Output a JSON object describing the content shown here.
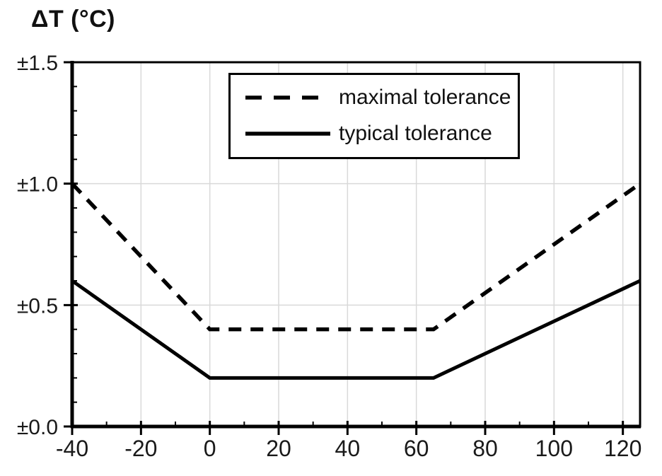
{
  "title": "ΔT (°C)",
  "colors": {
    "axis": "#000000",
    "grid": "#d9d9d9",
    "text": "#1a1a1a",
    "background": "#ffffff"
  },
  "legend": {
    "entries": [
      "maximal tolerance",
      "typical tolerance"
    ]
  },
  "chart_data": {
    "type": "line",
    "title": "ΔT (°C)",
    "xlabel": "",
    "ylabel": "ΔT (°C)",
    "xlim": [
      -40,
      125
    ],
    "ylim": [
      0,
      1.5
    ],
    "x_major_ticks": [
      -40,
      -20,
      0,
      20,
      40,
      60,
      80,
      100,
      120
    ],
    "x_tick_labels": [
      "-40",
      "-20",
      "0",
      "20",
      "40",
      "60",
      "80",
      "100",
      "120"
    ],
    "x_minor_tick_step": 10,
    "y_major_ticks": [
      0,
      0.5,
      1.0,
      1.5
    ],
    "y_tick_labels": [
      "±0.0",
      "±0.5",
      "±1.0",
      "±1.5"
    ],
    "y_minor_tick_step": 0.1,
    "grid": true,
    "legend_position": "top-center-inside",
    "series": [
      {
        "name": "maximal tolerance",
        "line_style": "dashed",
        "color": "#000000",
        "points": [
          [
            -40,
            1.0
          ],
          [
            0,
            0.4
          ],
          [
            65,
            0.4
          ],
          [
            125,
            1.0
          ]
        ]
      },
      {
        "name": "typical tolerance",
        "line_style": "solid",
        "color": "#000000",
        "points": [
          [
            -40,
            0.6
          ],
          [
            0,
            0.2
          ],
          [
            65,
            0.2
          ],
          [
            125,
            0.6
          ]
        ]
      }
    ]
  }
}
